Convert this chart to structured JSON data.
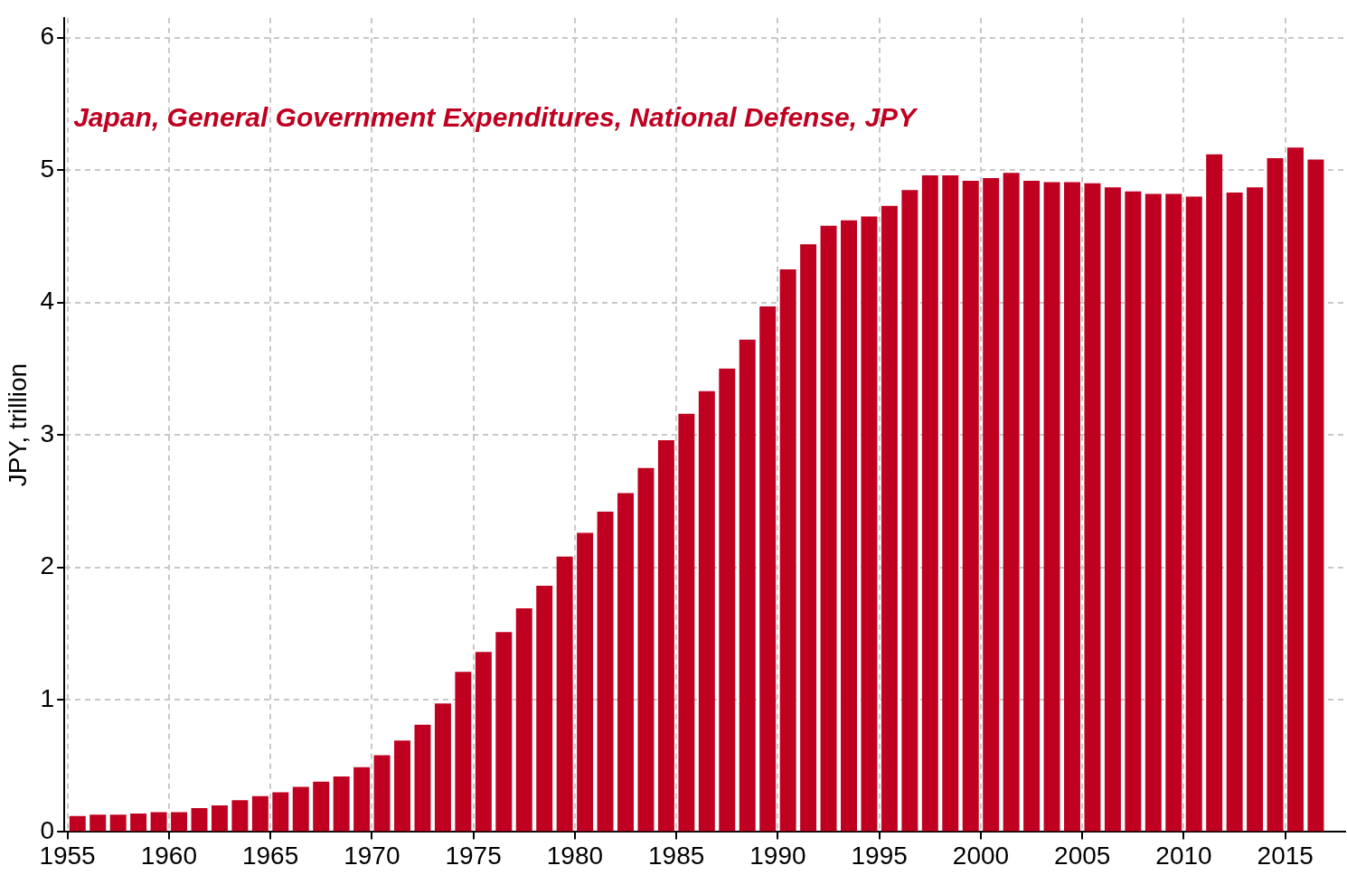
{
  "chart_data": {
    "type": "bar",
    "title": "Japan, General Government Expenditures, National Defense, JPY",
    "ylabel": "JPY, trillion",
    "x": [
      1955.5,
      1956.5,
      1957.5,
      1958.5,
      1959.5,
      1960.5,
      1961.5,
      1962.5,
      1963.5,
      1964.5,
      1965.5,
      1966.5,
      1967.5,
      1968.5,
      1969.5,
      1970.5,
      1971.5,
      1972.5,
      1973.5,
      1974.5,
      1975.5,
      1976.5,
      1977.5,
      1978.5,
      1979.5,
      1980.5,
      1981.5,
      1982.5,
      1983.5,
      1984.5,
      1985.5,
      1986.5,
      1987.5,
      1988.5,
      1989.5,
      1990.5,
      1991.5,
      1992.5,
      1993.5,
      1994.5,
      1995.5,
      1996.5,
      1997.5,
      1998.5,
      1999.5,
      2000.5,
      2001.5,
      2002.5,
      2003.5,
      2004.5,
      2005.5,
      2006.5,
      2007.5,
      2008.5,
      2009.5,
      2010.5,
      2011.5,
      2012.5,
      2013.5,
      2014.5,
      2015.5,
      2016.5
    ],
    "values": [
      0.12,
      0.13,
      0.13,
      0.14,
      0.15,
      0.15,
      0.18,
      0.2,
      0.24,
      0.27,
      0.3,
      0.34,
      0.38,
      0.42,
      0.49,
      0.58,
      0.69,
      0.81,
      0.97,
      1.21,
      1.36,
      1.51,
      1.69,
      1.86,
      2.08,
      2.26,
      2.42,
      2.56,
      2.75,
      2.96,
      3.16,
      3.33,
      3.5,
      3.72,
      3.97,
      4.25,
      4.44,
      4.58,
      4.62,
      4.65,
      4.73,
      4.85,
      4.96,
      4.96,
      4.92,
      4.94,
      4.98,
      4.92,
      4.91,
      4.91,
      4.9,
      4.87,
      4.84,
      4.82,
      4.82,
      4.8,
      5.12,
      4.83,
      4.87,
      5.09,
      5.17,
      5.08
    ],
    "color": "#c00020",
    "xlim": [
      1954.85,
      2017.95
    ],
    "xticks": [
      1955,
      1960,
      1965,
      1970,
      1975,
      1980,
      1985,
      1990,
      1995,
      2000,
      2005,
      2010,
      2015
    ],
    "ylim": [
      0,
      6.15
    ],
    "yticks": [
      0,
      1,
      2,
      3,
      4,
      5,
      6
    ],
    "grid": true,
    "legend": false
  }
}
